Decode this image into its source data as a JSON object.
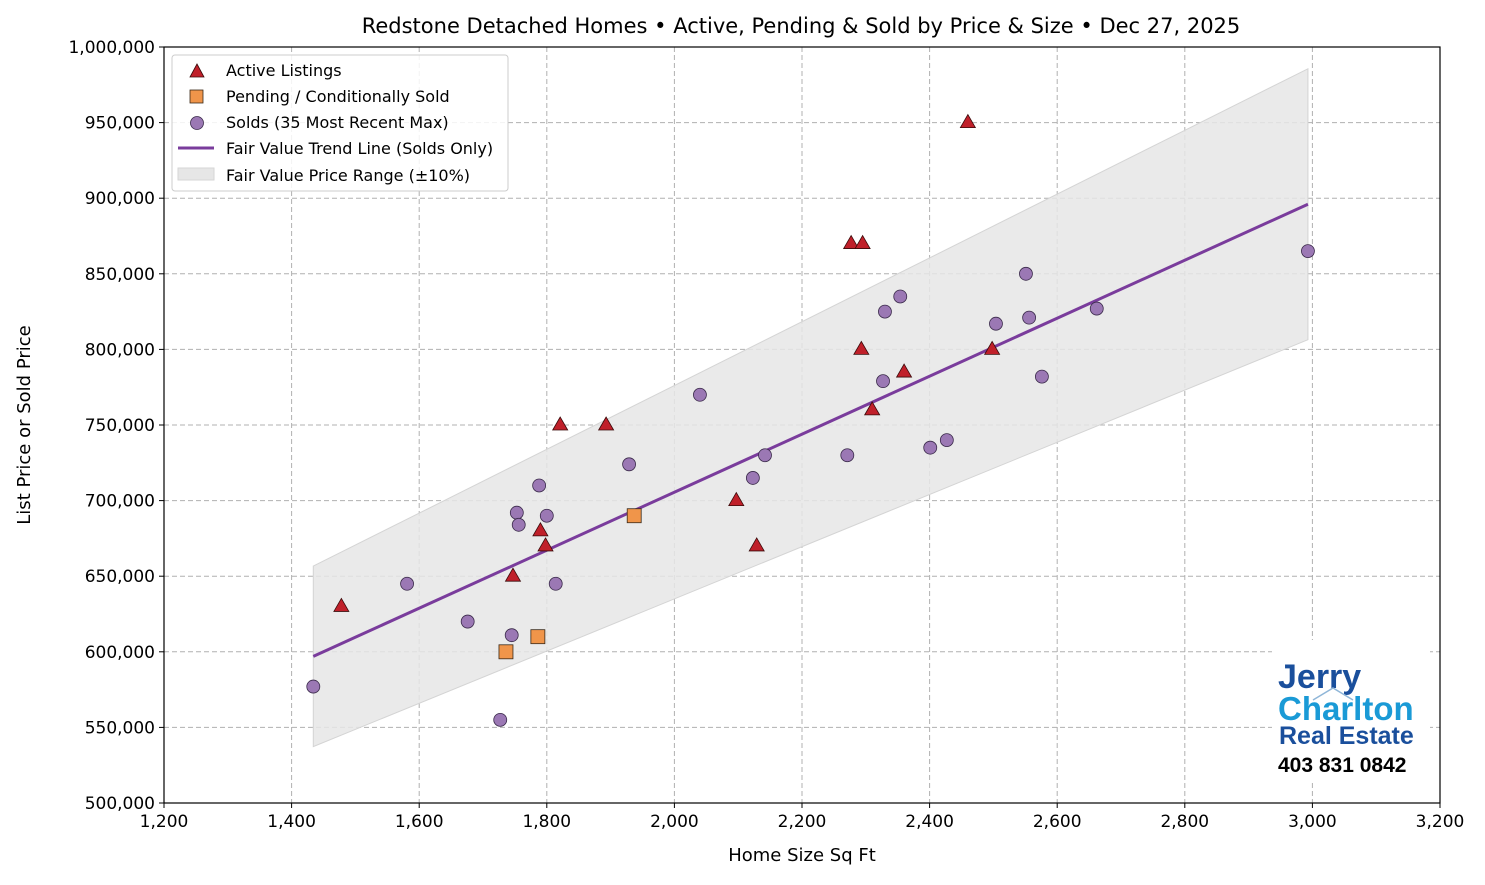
{
  "chart_data": {
    "type": "scatter",
    "title": "Redstone Detached Homes • Active, Pending & Sold by Price & Size • Dec 27, 2025",
    "xlabel": "Home Size Sq Ft",
    "ylabel": "List Price or Sold Price",
    "xlim": [
      1200,
      3200
    ],
    "ylim": [
      500000,
      1000000
    ],
    "xticks": [
      1200,
      1400,
      1600,
      1800,
      2000,
      2200,
      2400,
      2600,
      2800,
      3000,
      3200
    ],
    "xtick_labels": [
      "1,200",
      "1,400",
      "1,600",
      "1,800",
      "2,000",
      "2,200",
      "2,400",
      "2,600",
      "2,800",
      "3,000",
      "3,200"
    ],
    "yticks": [
      500000,
      550000,
      600000,
      650000,
      700000,
      750000,
      800000,
      850000,
      900000,
      950000,
      1000000
    ],
    "ytick_labels": [
      "500,000",
      "550,000",
      "600,000",
      "650,000",
      "700,000",
      "750,000",
      "800,000",
      "850,000",
      "900,000",
      "950,000",
      "1,000,000"
    ],
    "grid": true,
    "legend_placement": "top-left",
    "series": [
      {
        "name": "Active Listings",
        "marker": "triangle",
        "color": "#c0202a",
        "points": [
          [
            1478,
            630000
          ],
          [
            1747,
            650000
          ],
          [
            1790,
            680000
          ],
          [
            1798,
            670000
          ],
          [
            1821,
            750000
          ],
          [
            1893,
            750000
          ],
          [
            2097,
            700000
          ],
          [
            2129,
            670000
          ],
          [
            2277,
            870000
          ],
          [
            2295,
            870000
          ],
          [
            2293,
            800000
          ],
          [
            2310,
            760000
          ],
          [
            2360,
            785000
          ],
          [
            2460,
            950000
          ],
          [
            2498,
            800000
          ]
        ]
      },
      {
        "name": "Pending / Conditionally Sold",
        "marker": "square",
        "color": "#f0954a",
        "points": [
          [
            1736,
            600000
          ],
          [
            1786,
            610000
          ],
          [
            1937,
            690000
          ]
        ]
      },
      {
        "name": "Solds (35 Most Recent Max)",
        "marker": "circle",
        "color": "#9b78b4",
        "points": [
          [
            1434,
            577000
          ],
          [
            1581,
            645000
          ],
          [
            1676,
            620000
          ],
          [
            1727,
            555000
          ],
          [
            1745,
            611000
          ],
          [
            1814,
            645000
          ],
          [
            1753,
            692000
          ],
          [
            1756,
            684000
          ],
          [
            1800,
            690000
          ],
          [
            1788,
            710000
          ],
          [
            1929,
            724000
          ],
          [
            2040,
            770000
          ],
          [
            2142,
            730000
          ],
          [
            2123,
            715000
          ],
          [
            2271,
            730000
          ],
          [
            2354,
            835000
          ],
          [
            2330,
            825000
          ],
          [
            2551,
            850000
          ],
          [
            2504,
            817000
          ],
          [
            2556,
            821000
          ],
          [
            2662,
            827000
          ],
          [
            2327,
            779000
          ],
          [
            2576,
            782000
          ],
          [
            2401,
            735000
          ],
          [
            2427,
            740000
          ],
          [
            2993,
            865000
          ]
        ]
      }
    ],
    "trend_line": {
      "name": "Fair Value Trend Line (Solds Only)",
      "color": "#7a3c9c",
      "x": [
        1434,
        2993
      ],
      "y": [
        597000,
        896000
      ]
    },
    "range_band": {
      "name": "Fair Value Price Range (±10%)",
      "color": "#e6e6e6",
      "pct": 10
    }
  },
  "logo": {
    "line1": "Jerry",
    "line2": "Charlton",
    "line3": "Real Estate",
    "phone": "403 831 0842"
  }
}
